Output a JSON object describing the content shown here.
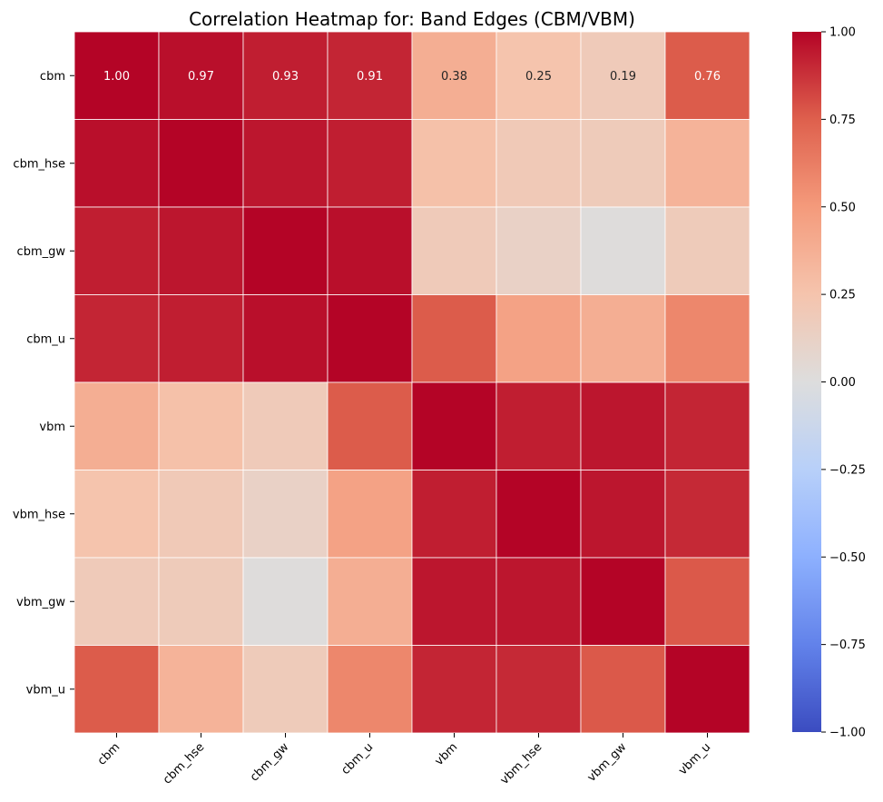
{
  "chart_data": {
    "type": "heatmap",
    "title": "Correlation Heatmap for: Band Edges (CBM/VBM)",
    "xlabel": "",
    "ylabel": "",
    "x_categories": [
      "cbm",
      "cbm_hse",
      "cbm_gw",
      "cbm_u",
      "vbm",
      "vbm_hse",
      "vbm_gw",
      "vbm_u"
    ],
    "y_categories": [
      "cbm",
      "cbm_hse",
      "cbm_gw",
      "cbm_u",
      "vbm",
      "vbm_hse",
      "vbm_gw",
      "vbm_u"
    ],
    "values": [
      [
        1.0,
        0.97,
        0.93,
        0.91,
        0.38,
        0.25,
        0.19,
        0.76
      ],
      [
        0.97,
        1.0,
        0.95,
        0.93,
        0.27,
        0.2,
        0.18,
        0.35
      ],
      [
        0.93,
        0.95,
        1.0,
        0.97,
        0.19,
        0.12,
        0.01,
        0.18
      ],
      [
        0.91,
        0.93,
        0.97,
        1.0,
        0.76,
        0.45,
        0.38,
        0.58
      ],
      [
        0.38,
        0.27,
        0.19,
        0.76,
        1.0,
        0.93,
        0.95,
        0.91
      ],
      [
        0.25,
        0.2,
        0.12,
        0.45,
        0.93,
        1.0,
        0.95,
        0.9
      ],
      [
        0.19,
        0.18,
        0.01,
        0.38,
        0.95,
        0.95,
        1.0,
        0.77
      ],
      [
        0.76,
        0.35,
        0.18,
        0.58,
        0.91,
        0.9,
        0.77,
        1.0
      ]
    ],
    "annotated_rows": [
      0
    ],
    "annotation_format": "0.00",
    "colormap": "coolwarm",
    "vmin": -1.0,
    "vmax": 1.0,
    "colorbar": {
      "ticks": [
        1.0,
        0.75,
        0.5,
        0.25,
        0.0,
        -0.25,
        -0.5,
        -0.75,
        -1.0
      ],
      "tick_labels": [
        "1.00",
        "0.75",
        "0.50",
        "0.25",
        "0.00",
        "−0.25",
        "−0.50",
        "−0.75",
        "−1.00"
      ]
    },
    "grid": false,
    "cell_border_color": "#ffffff"
  }
}
